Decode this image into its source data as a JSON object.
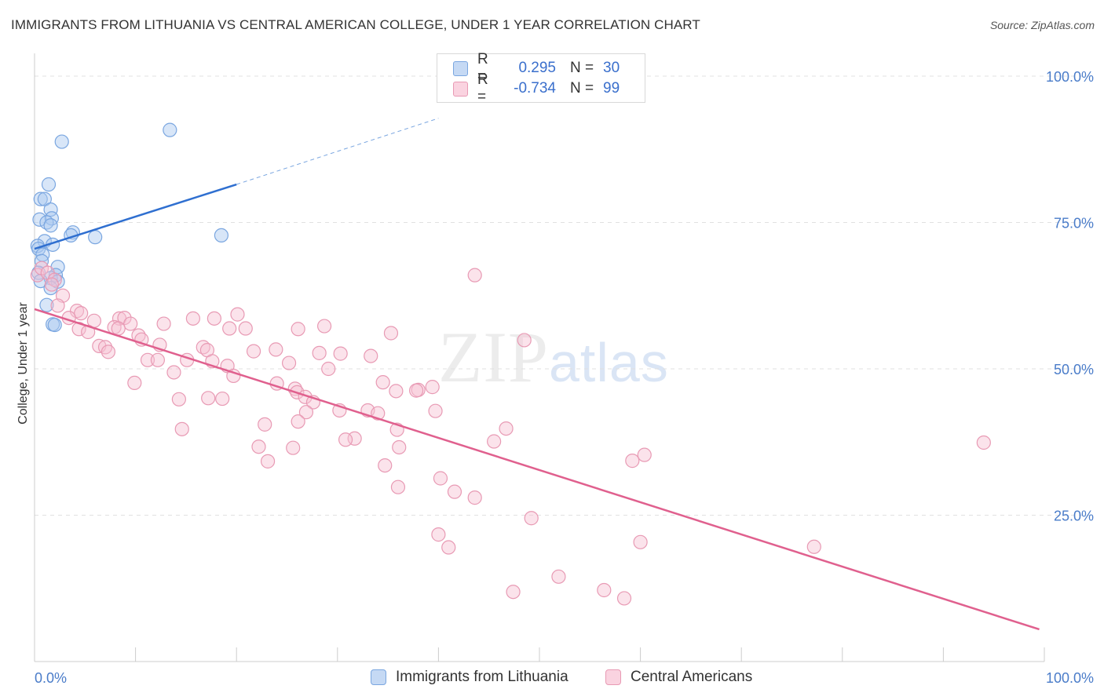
{
  "header": {
    "title": "IMMIGRANTS FROM LITHUANIA VS CENTRAL AMERICAN COLLEGE, UNDER 1 YEAR CORRELATION CHART",
    "source": "Source: ZipAtlas.com"
  },
  "watermark": {
    "zip": "ZIP",
    "atlas": "atlas"
  },
  "legend": {
    "rows": [
      {
        "r_label": "R =",
        "r_value": "0.295",
        "n_label": "N =",
        "n_value": "30",
        "color": "#a9c8f0",
        "border": "#7aa6e0"
      },
      {
        "r_label": "R =",
        "r_value": "-0.734",
        "n_label": "N =",
        "n_value": "99",
        "color": "#f7c0d2",
        "border": "#e89ab4"
      }
    ]
  },
  "bottom_legend": {
    "series1": "Immigrants from Lithuania",
    "series2": "Central Americans"
  },
  "chart_data": {
    "type": "scatter",
    "title": "IMMIGRANTS FROM LITHUANIA VS CENTRAL AMERICAN COLLEGE, UNDER 1 YEAR CORRELATION CHART",
    "xlabel": "",
    "ylabel": "College, Under 1 year",
    "xlim": [
      0,
      100
    ],
    "ylim": [
      0,
      100
    ],
    "x_tick_labels": [
      "0.0%",
      "100.0%"
    ],
    "y_tick_labels": [
      "25.0%",
      "50.0%",
      "75.0%",
      "100.0%"
    ],
    "y_ticks": [
      25,
      50,
      75,
      100
    ],
    "grid": true,
    "legend_position": "top-center",
    "series": [
      {
        "name": "Immigrants from Lithuania",
        "color": "#7aa6e0",
        "fill": "#a9c8f0",
        "trend": {
          "x0": 0,
          "y0": 70.5,
          "x1": 20,
          "y1": 81.5,
          "dash_to_x": 40,
          "dash_to_y": 92.8,
          "color": "#2f6fd0"
        },
        "points": [
          [
            2.7,
            88.8
          ],
          [
            13.4,
            90.8
          ],
          [
            1.4,
            81.5
          ],
          [
            0.6,
            79.0
          ],
          [
            1.0,
            79.0
          ],
          [
            1.6,
            77.2
          ],
          [
            0.5,
            75.5
          ],
          [
            1.7,
            75.7
          ],
          [
            1.2,
            75.0
          ],
          [
            1.6,
            74.5
          ],
          [
            3.8,
            73.3
          ],
          [
            3.6,
            72.8
          ],
          [
            6.0,
            72.5
          ],
          [
            18.5,
            72.8
          ],
          [
            1.0,
            71.8
          ],
          [
            1.8,
            71.2
          ],
          [
            0.3,
            71.0
          ],
          [
            0.4,
            70.5
          ],
          [
            0.8,
            69.5
          ],
          [
            0.7,
            68.4
          ],
          [
            2.3,
            67.4
          ],
          [
            2.1,
            66.0
          ],
          [
            1.6,
            65.5
          ],
          [
            2.3,
            64.9
          ],
          [
            0.4,
            66.4
          ],
          [
            0.6,
            65.0
          ],
          [
            1.6,
            63.8
          ],
          [
            1.2,
            60.9
          ],
          [
            1.8,
            57.6
          ],
          [
            2.0,
            57.5
          ]
        ]
      },
      {
        "name": "Central Americans",
        "color": "#e89ab4",
        "fill": "#f7c0d2",
        "trend": {
          "x0": 0,
          "y0": 60.2,
          "x1": 99.5,
          "y1": 5.5,
          "color": "#e0608e"
        },
        "points": [
          [
            0.3,
            66.0
          ],
          [
            0.7,
            67.2
          ],
          [
            1.3,
            66.4
          ],
          [
            2.0,
            65.2
          ],
          [
            1.7,
            64.4
          ],
          [
            2.8,
            62.5
          ],
          [
            2.3,
            60.8
          ],
          [
            4.2,
            59.9
          ],
          [
            4.6,
            59.5
          ],
          [
            3.4,
            58.7
          ],
          [
            5.9,
            58.2
          ],
          [
            4.4,
            56.8
          ],
          [
            5.3,
            56.3
          ],
          [
            8.4,
            58.6
          ],
          [
            8.9,
            58.7
          ],
          [
            9.5,
            57.7
          ],
          [
            7.9,
            57.1
          ],
          [
            12.8,
            57.7
          ],
          [
            15.7,
            58.6
          ],
          [
            20.1,
            59.3
          ],
          [
            19.3,
            56.9
          ],
          [
            20.9,
            56.9
          ],
          [
            26.1,
            56.8
          ],
          [
            28.7,
            57.3
          ],
          [
            35.3,
            56.1
          ],
          [
            10.3,
            55.7
          ],
          [
            10.6,
            55.0
          ],
          [
            12.4,
            54.1
          ],
          [
            6.4,
            53.9
          ],
          [
            7.0,
            53.7
          ],
          [
            7.3,
            52.9
          ],
          [
            16.7,
            53.7
          ],
          [
            17.1,
            53.2
          ],
          [
            21.7,
            53.0
          ],
          [
            23.9,
            53.3
          ],
          [
            28.2,
            52.7
          ],
          [
            30.3,
            52.6
          ],
          [
            33.3,
            52.2
          ],
          [
            11.2,
            51.5
          ],
          [
            12.2,
            51.5
          ],
          [
            15.1,
            51.5
          ],
          [
            17.6,
            51.3
          ],
          [
            19.1,
            50.5
          ],
          [
            25.2,
            51.0
          ],
          [
            29.1,
            50.0
          ],
          [
            13.8,
            49.4
          ],
          [
            19.7,
            48.8
          ],
          [
            9.9,
            47.6
          ],
          [
            24.0,
            47.5
          ],
          [
            34.5,
            47.7
          ],
          [
            25.8,
            46.6
          ],
          [
            26.0,
            46.0
          ],
          [
            35.8,
            46.2
          ],
          [
            38.0,
            46.4
          ],
          [
            37.8,
            46.3
          ],
          [
            39.4,
            46.9
          ],
          [
            17.2,
            45.0
          ],
          [
            26.8,
            45.2
          ],
          [
            18.6,
            44.9
          ],
          [
            14.3,
            44.8
          ],
          [
            27.6,
            44.3
          ],
          [
            30.2,
            42.9
          ],
          [
            33.0,
            42.9
          ],
          [
            34.0,
            42.4
          ],
          [
            39.7,
            42.8
          ],
          [
            26.9,
            42.6
          ],
          [
            26.1,
            41.0
          ],
          [
            22.8,
            40.5
          ],
          [
            14.6,
            39.7
          ],
          [
            35.9,
            39.6
          ],
          [
            46.7,
            39.8
          ],
          [
            31.7,
            38.1
          ],
          [
            30.8,
            37.9
          ],
          [
            45.5,
            37.6
          ],
          [
            94.0,
            37.4
          ],
          [
            22.2,
            36.7
          ],
          [
            25.6,
            36.5
          ],
          [
            36.1,
            36.6
          ],
          [
            60.4,
            35.3
          ],
          [
            59.2,
            34.3
          ],
          [
            23.1,
            34.2
          ],
          [
            34.7,
            33.5
          ],
          [
            40.2,
            31.3
          ],
          [
            36.0,
            29.8
          ],
          [
            41.6,
            29.0
          ],
          [
            43.6,
            28.0
          ],
          [
            49.2,
            24.5
          ],
          [
            40.0,
            21.7
          ],
          [
            41.0,
            19.5
          ],
          [
            60.0,
            20.4
          ],
          [
            77.2,
            19.6
          ],
          [
            51.9,
            14.5
          ],
          [
            56.4,
            12.2
          ],
          [
            47.4,
            11.9
          ],
          [
            58.4,
            10.8
          ],
          [
            43.6,
            66.0
          ],
          [
            48.5,
            54.9
          ],
          [
            17.8,
            58.6
          ],
          [
            8.3,
            56.9
          ]
        ]
      }
    ]
  }
}
